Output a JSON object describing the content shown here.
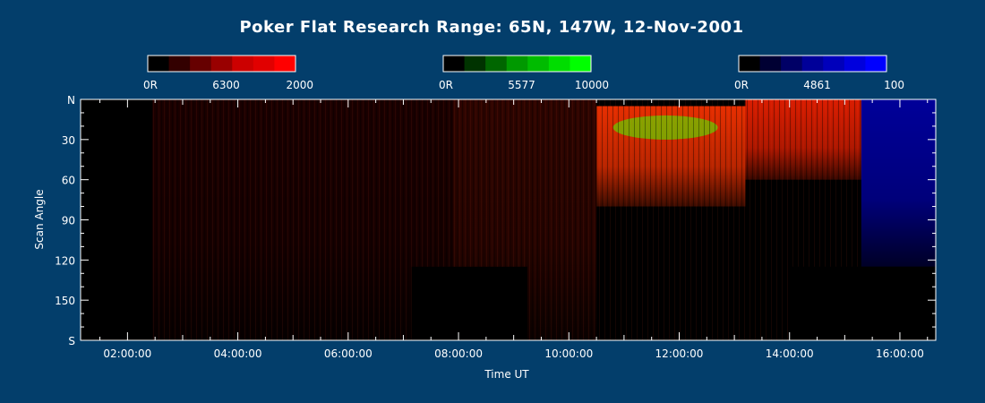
{
  "chart_data": {
    "type": "heatmap",
    "title": "Poker Flat Research Range: 65N, 147W, 12-Nov-2001",
    "xlabel": "Time UT",
    "ylabel": "Scan Angle",
    "x_ticks": [
      "02:00:00",
      "04:00:00",
      "06:00:00",
      "08:00:00",
      "10:00:00",
      "12:00:00",
      "14:00:00",
      "16:00:00"
    ],
    "x_tick_hours": [
      2,
      4,
      6,
      8,
      10,
      12,
      14,
      16
    ],
    "xlim_hours": [
      1.15,
      16.65
    ],
    "y_ticks": [
      "N",
      "30",
      "60",
      "90",
      "120",
      "150",
      "S"
    ],
    "y_tick_values": [
      0,
      30,
      60,
      90,
      120,
      150,
      180
    ],
    "ylim": [
      0,
      180
    ],
    "grid": false,
    "colorbars": [
      {
        "channel": "6300",
        "min_label": "0R",
        "mid_label": "6300",
        "max_label": "2000",
        "colors": [
          "#000000",
          "#330000",
          "#660000",
          "#990000",
          "#cc0000",
          "#e10000",
          "#ff0000"
        ]
      },
      {
        "channel": "5577",
        "min_label": "0R",
        "mid_label": "5577",
        "max_label": "10000",
        "colors": [
          "#000000",
          "#003300",
          "#006600",
          "#009900",
          "#00bb00",
          "#00dd00",
          "#00ff00"
        ]
      },
      {
        "channel": "4861",
        "min_label": "0R",
        "mid_label": "4861",
        "max_label": "100",
        "colors": [
          "#000000",
          "#000033",
          "#000066",
          "#000099",
          "#0000bb",
          "#0000dd",
          "#0000ff"
        ]
      }
    ],
    "emission_regions": [
      {
        "channel": "6300",
        "t_start": 2.45,
        "t_end": 7.9,
        "angle_start": 0,
        "angle_end": 180,
        "color": "#3a0000",
        "intensity": 0.45
      },
      {
        "channel": "6300",
        "t_start": 7.9,
        "t_end": 10.5,
        "angle_start": 0,
        "angle_end": 180,
        "color": "#5a0800",
        "intensity": 0.5
      },
      {
        "channel": "6300",
        "t_start": 10.5,
        "t_end": 13.2,
        "angle_start": 5,
        "angle_end": 80,
        "color": "#ff3300",
        "intensity": 0.9
      },
      {
        "channel": "6300",
        "t_start": 13.2,
        "t_end": 15.3,
        "angle_start": 0,
        "angle_end": 60,
        "color": "#ff2200",
        "intensity": 0.85
      },
      {
        "channel": "5577",
        "t_start": 10.8,
        "t_end": 12.7,
        "angle_start": 12,
        "angle_end": 30,
        "color": "#44ff00",
        "intensity": 0.8
      },
      {
        "channel": "4861",
        "t_start": 15.3,
        "t_end": 16.65,
        "angle_start": 0,
        "angle_end": 125,
        "color": "#0000ff",
        "intensity": 0.6
      }
    ],
    "no_data_blocks": [
      {
        "t_start": 1.15,
        "t_end": 2.45,
        "angle_start": 0,
        "angle_end": 180
      },
      {
        "t_start": 7.15,
        "t_end": 9.25,
        "angle_start": 125,
        "angle_end": 180
      },
      {
        "t_start": 14.0,
        "t_end": 16.65,
        "angle_start": 125,
        "angle_end": 180
      }
    ]
  }
}
